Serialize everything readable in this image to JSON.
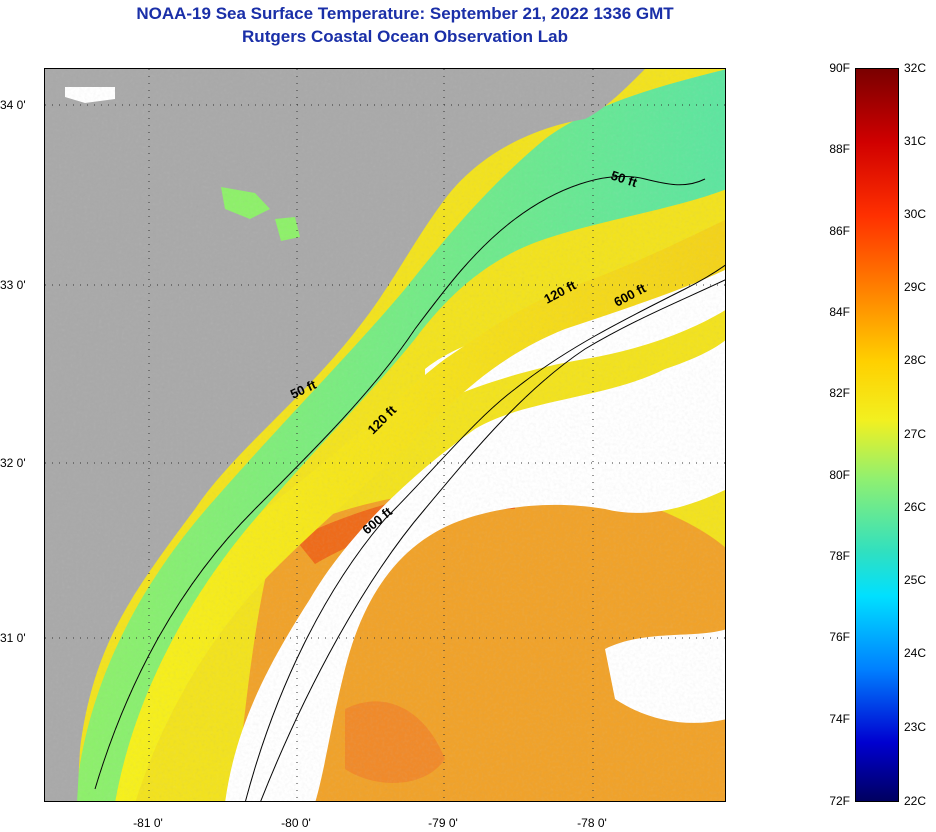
{
  "title": {
    "line1": "NOAA-19 Sea Surface Temperature:  September 21, 2022 1336 GMT",
    "line2": "Rutgers Coastal Ocean Observation Lab"
  },
  "map": {
    "lat_ticks": [
      "34 0'",
      "33 0'",
      "32 0'",
      "31 0'"
    ],
    "lon_ticks": [
      "-81 0'",
      "-80 0'",
      "-79 0'",
      "-78 0'"
    ],
    "isobaths": [
      {
        "label": "50 ft"
      },
      {
        "label": "50 ft"
      },
      {
        "label": "120 ft"
      },
      {
        "label": "120 ft"
      },
      {
        "label": "600 ft"
      },
      {
        "label": "600 ft"
      }
    ],
    "colors": {
      "land": "#a9a9a9",
      "cloud": "#ffffff",
      "coast": "#000000",
      "grid": "#333333"
    }
  },
  "colorbar": {
    "fahrenheit_labels": [
      "90F",
      "88F",
      "86F",
      "84F",
      "82F",
      "80F",
      "78F",
      "76F",
      "74F",
      "72F"
    ],
    "celsius_labels": [
      "32C",
      "31C",
      "30C",
      "29C",
      "28C",
      "27C",
      "26C",
      "25C",
      "24C",
      "23C",
      "22C"
    ],
    "range_f": [
      72,
      90
    ],
    "range_c": [
      22,
      32
    ]
  }
}
